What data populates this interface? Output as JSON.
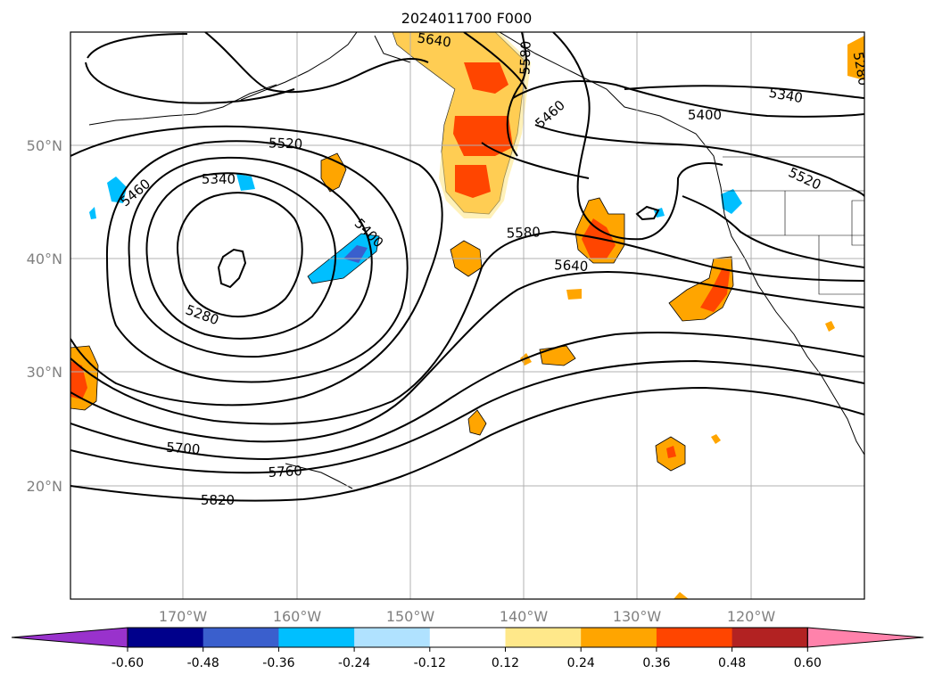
{
  "title": "2024011700 F000",
  "map": {
    "lon_range": [
      -180,
      -110
    ],
    "lat_range": [
      10,
      60
    ],
    "lon_gridlines": [
      -170,
      -160,
      -150,
      -140,
      -130,
      -120
    ],
    "lat_gridlines": [
      20,
      30,
      40,
      50
    ],
    "lon_labels": [
      "170°W",
      "160°W",
      "150°W",
      "140°W",
      "130°W",
      "120°W"
    ],
    "lat_labels": [
      "20°N",
      "30°N",
      "40°N",
      "50°N"
    ],
    "contour_labels": [
      "5640",
      "5580",
      "5460",
      "5340",
      "5400",
      "5520",
      "5460",
      "5340",
      "5400",
      "5580",
      "5640",
      "5280",
      "5520",
      "5700",
      "5760",
      "5820",
      "5280"
    ]
  },
  "colorbar": {
    "ticks": [
      "-0.60",
      "-0.48",
      "-0.36",
      "-0.24",
      "-0.12",
      "0.12",
      "0.24",
      "0.36",
      "0.48",
      "0.60"
    ],
    "colors": [
      "#9932cc",
      "#00008b",
      "#3a5fcd",
      "#00bfff",
      "#b0e2ff",
      "#ffffff",
      "#ffe88a",
      "#ffa500",
      "#ff4500",
      "#b22222",
      "#ff82ab"
    ]
  }
}
